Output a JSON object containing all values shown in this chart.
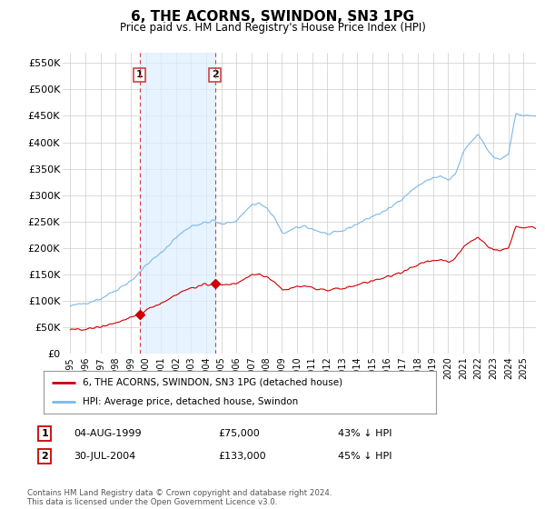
{
  "title": "6, THE ACORNS, SWINDON, SN3 1PG",
  "subtitle": "Price paid vs. HM Land Registry's House Price Index (HPI)",
  "hpi_color": "#7ab8e8",
  "sold_color": "#cc0000",
  "shading_color": "#ddeeff",
  "ylim": [
    0,
    570000
  ],
  "yticks": [
    0,
    50000,
    100000,
    150000,
    200000,
    250000,
    300000,
    350000,
    400000,
    450000,
    500000,
    550000
  ],
  "ytick_labels": [
    "£0",
    "£50K",
    "£100K",
    "£150K",
    "£200K",
    "£250K",
    "£300K",
    "£350K",
    "£400K",
    "£450K",
    "£500K",
    "£550K"
  ],
  "xtick_years": [
    1995,
    1996,
    1997,
    1998,
    1999,
    2000,
    2001,
    2002,
    2003,
    2004,
    2005,
    2006,
    2007,
    2008,
    2009,
    2010,
    2011,
    2012,
    2013,
    2014,
    2015,
    2016,
    2017,
    2018,
    2019,
    2020,
    2021,
    2022,
    2023,
    2024,
    2025
  ],
  "legend_entries": [
    "6, THE ACORNS, SWINDON, SN3 1PG (detached house)",
    "HPI: Average price, detached house, Swindon"
  ],
  "table_rows": [
    {
      "num": "1",
      "date": "04-AUG-1999",
      "price": "£75,000",
      "pct": "43% ↓ HPI"
    },
    {
      "num": "2",
      "date": "30-JUL-2004",
      "price": "£133,000",
      "pct": "45% ↓ HPI"
    }
  ],
  "footnote": "Contains HM Land Registry data © Crown copyright and database right 2024.\nThis data is licensed under the Open Government Licence v3.0.",
  "sale1_year": 1999.58,
  "sale1_price": 75000,
  "sale2_year": 2004.57,
  "sale2_price": 133000,
  "vline1_x": 1999.58,
  "vline2_x": 2004.57,
  "background_color": "#ffffff",
  "grid_color": "#cccccc"
}
